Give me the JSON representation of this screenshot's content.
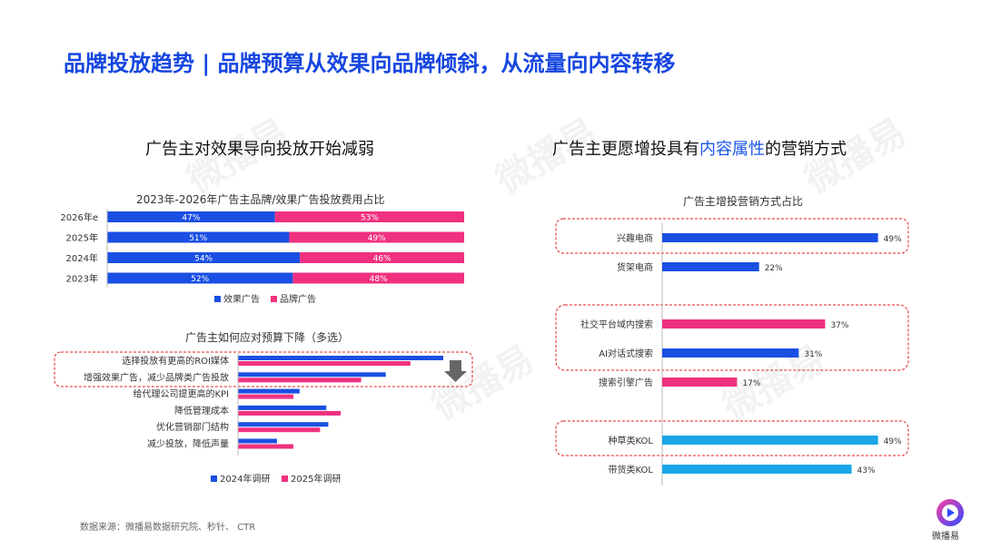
{
  "page": {
    "title": "品牌投放趋势 | 品牌预算从效果向品牌倾斜，从流量向内容转移",
    "left_heading": "广告主对效果导向投放开始减弱",
    "right_heading_pre": "广告主更愿增投具有",
    "right_heading_highlight": "内容属性",
    "right_heading_post": "的营销方式",
    "source": "数据来源：微播易数据研究院、秒针、 CTR",
    "brand_name": "微播易",
    "watermark": "微播易"
  },
  "colors": {
    "blue": "#1a4fe3",
    "pink": "#f0317f",
    "cyan": "#1ba6e8",
    "title_blue": "#1646e0",
    "dashed_red": "#e02020"
  },
  "chart_data": [
    {
      "type": "bar",
      "stacked": true,
      "orientation": "horizontal",
      "title": "2023年-2026年广告主品牌/效果广告投放费用占比",
      "categories": [
        "2026年e",
        "2025年",
        "2024年",
        "2023年"
      ],
      "series": [
        {
          "name": "效果广告",
          "values": [
            47,
            51,
            54,
            52
          ],
          "labels": [
            "47%",
            "51%",
            "54%",
            "52%"
          ]
        },
        {
          "name": "品牌广告",
          "values": [
            53,
            49,
            46,
            48
          ],
          "labels": [
            "53%",
            "49%",
            "46%",
            "48%"
          ]
        }
      ],
      "xlim": [
        0,
        100
      ],
      "legend": "bottom"
    },
    {
      "type": "bar",
      "orientation": "horizontal",
      "title": "广告主如何应对预算下降（多选）",
      "categories": [
        "选择投放有更高的ROI媒体",
        "增强效果广告，减少品牌类广告投放",
        "给代理公司提更高的KPI",
        "降低管理成本",
        "优化营销部门结构",
        "减少投放，降低声量"
      ],
      "series": [
        {
          "name": "2024年调研",
          "values": [
            100,
            72,
            30,
            43,
            44,
            19
          ]
        },
        {
          "name": "2025年调研",
          "values": [
            84,
            60,
            27,
            50,
            40,
            27
          ]
        }
      ],
      "legend": "bottom"
    },
    {
      "type": "bar",
      "orientation": "horizontal",
      "title": "广告主增投营销方式占比",
      "categories": [
        "兴趣电商",
        "货架电商",
        "社交平台域内搜索",
        "AI对话式搜索",
        "搜索引擎广告",
        "种草类KOL",
        "带货类KOL"
      ],
      "values": [
        49,
        22,
        37,
        31,
        17,
        49,
        43
      ],
      "labels": [
        "49%",
        "22%",
        "37%",
        "31%",
        "17%",
        "49%",
        "43%"
      ],
      "bar_colors": [
        "blue",
        "blue",
        "pink",
        "blue",
        "pink",
        "cyan",
        "cyan"
      ],
      "highlight_groups": [
        [
          "兴趣电商"
        ],
        [
          "社交平台域内搜索",
          "AI对话式搜索"
        ],
        [
          "种草类KOL"
        ]
      ]
    }
  ]
}
